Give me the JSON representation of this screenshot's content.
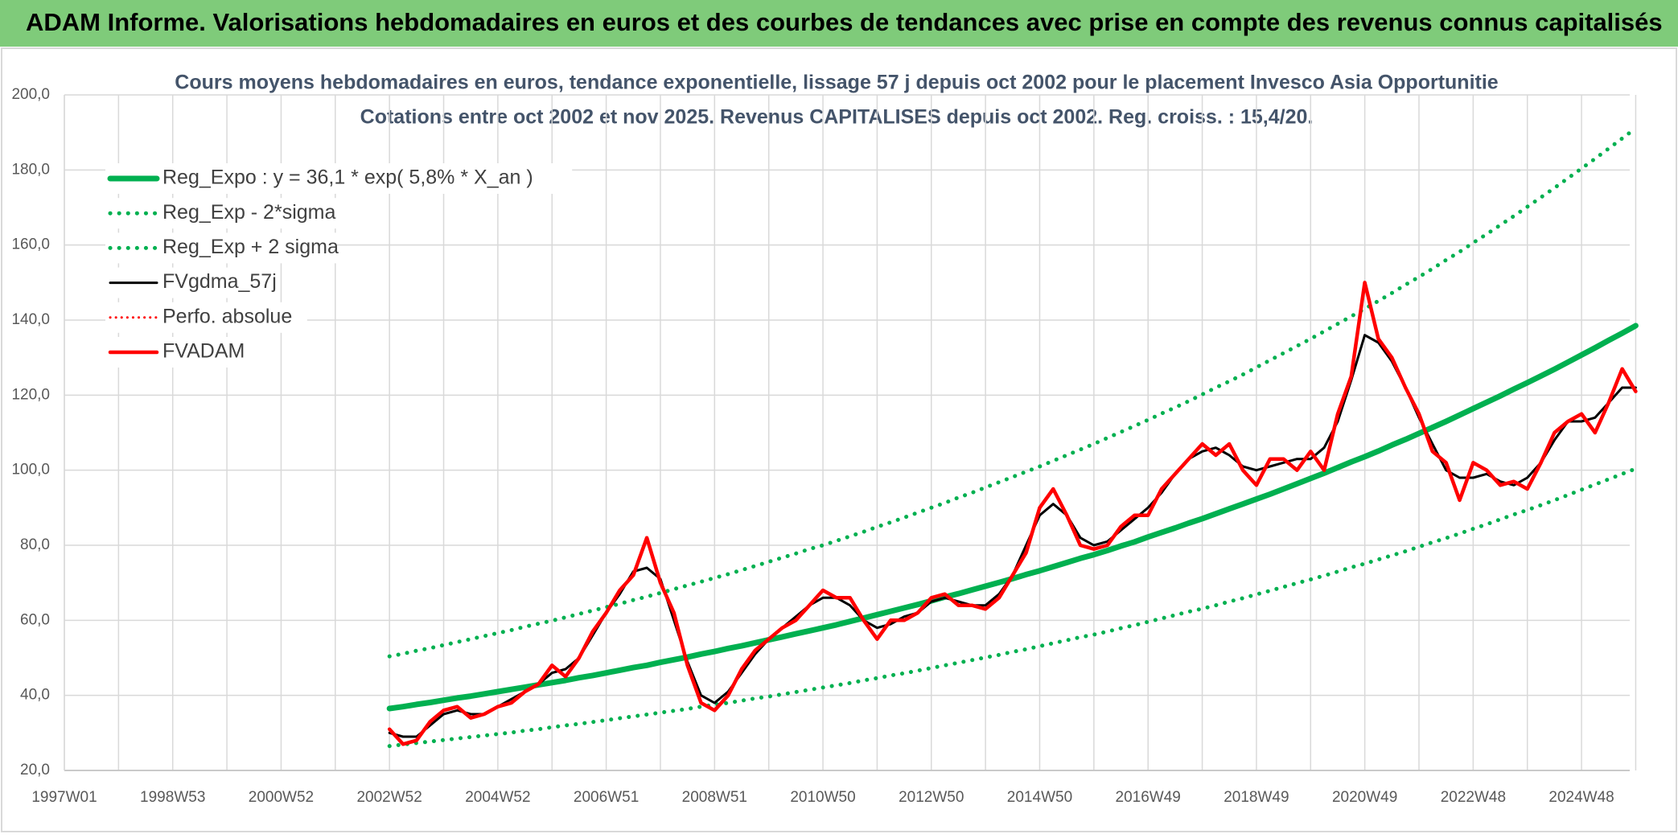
{
  "chart_data": {
    "type": "line",
    "banner": "ADAM Informe. Valorisations hebdomadaires en euros et des courbes de tendances avec prise en compte des revenus connus capitalisés",
    "title": "Cours moyens hebdomadaires en euros, tendance exponentielle, lissage 57 j depuis oct 2002 pour le placement Invesco Asia Opportunitie",
    "subtitle": "Cotations entre oct 2002 et nov 2025. Revenus CAPITALISES depuis oct 2002. Reg. croiss. : 15,4/20.",
    "categories": [
      "1997W01",
      null,
      null,
      null,
      null,
      null,
      null,
      null,
      "1998W53",
      null,
      null,
      null,
      null,
      null,
      null,
      null,
      "2000W52",
      null,
      null,
      null,
      null,
      null,
      null,
      null,
      "2002W52",
      null,
      null,
      null,
      null,
      null,
      null,
      null,
      "2004W52",
      null,
      null,
      null,
      null,
      null,
      null,
      null,
      "2006W51",
      null,
      null,
      null,
      null,
      null,
      null,
      null,
      "2008W51",
      null,
      null,
      null,
      null,
      null,
      null,
      null,
      "2010W50",
      null,
      null,
      null,
      null,
      null,
      null,
      null,
      "2012W50",
      null,
      null,
      null,
      null,
      null,
      null,
      null,
      "2014W50",
      null,
      null,
      null,
      null,
      null,
      null,
      null,
      "2016W49",
      null,
      null,
      null,
      null,
      null,
      null,
      null,
      "2018W49",
      null,
      null,
      null,
      null,
      null,
      null,
      null,
      "2020W49",
      null,
      null,
      null,
      null,
      null,
      null,
      null,
      "2022W48",
      null,
      null,
      null,
      null,
      null,
      null,
      null,
      "2024W48",
      null,
      null,
      null,
      null
    ],
    "ylim": [
      20,
      200
    ],
    "yticks": [
      {
        "value": 20,
        "label": "20,0"
      },
      {
        "value": 40,
        "label": "40,0"
      },
      {
        "value": 60,
        "label": "60,0"
      },
      {
        "value": 80,
        "label": "80,0"
      },
      {
        "value": 100,
        "label": "100,0"
      },
      {
        "value": 120,
        "label": "120,0"
      },
      {
        "value": 140,
        "label": "140,0"
      },
      {
        "value": 160,
        "label": "160,0"
      },
      {
        "value": 180,
        "label": "180,0"
      },
      {
        "value": 200,
        "label": "200,0"
      }
    ],
    "grid": true,
    "legend": "upper left",
    "series": [
      {
        "name": "Reg_Expo : y = 36,1 * exp( 5,8% *  X_an )",
        "color": "#00b050",
        "line_style": "solid",
        "values": [
          null,
          null,
          null,
          null,
          null,
          null,
          null,
          null,
          null,
          null,
          null,
          null,
          null,
          null,
          null,
          null,
          null,
          null,
          null,
          null,
          null,
          null,
          null,
          null,
          36.5,
          37.0,
          37.6,
          38.1,
          38.7,
          39.3,
          39.8,
          40.4,
          41.0,
          41.6,
          42.2,
          42.8,
          43.4,
          44.0,
          44.7,
          45.3,
          46.0,
          46.7,
          47.4,
          48.0,
          48.8,
          49.5,
          50.2,
          51.0,
          51.7,
          52.5,
          53.2,
          54.0,
          54.8,
          55.6,
          56.4,
          57.2,
          58.0,
          58.8,
          59.7,
          60.6,
          61.5,
          62.4,
          63.3,
          64.2,
          65.2,
          66.2,
          67.1,
          68.1,
          69.1,
          70.1,
          71.1,
          72.2,
          73.2,
          74.3,
          75.4,
          76.5,
          77.5,
          78.6,
          79.8,
          80.9,
          82.2,
          83.4,
          84.6,
          85.9,
          87.1,
          88.4,
          89.7,
          91.0,
          92.3,
          93.6,
          95.0,
          96.4,
          97.8,
          99.2,
          100.7,
          102.2,
          103.6,
          105.1,
          106.7,
          108.2,
          109.8,
          111.4,
          113.0,
          114.7,
          116.4,
          118.1,
          119.8,
          121.6,
          123.3,
          125.1,
          126.9,
          128.8,
          130.7,
          132.6,
          134.6,
          136.5,
          138.5
        ]
      },
      {
        "name": "Reg_Exp - 2*sigma",
        "color": "#00b050",
        "line_style": "dotted",
        "values": [
          null,
          null,
          null,
          null,
          null,
          null,
          null,
          null,
          null,
          null,
          null,
          null,
          null,
          null,
          null,
          null,
          null,
          null,
          null,
          null,
          null,
          null,
          null,
          null,
          26.5,
          26.9,
          27.3,
          27.7,
          28.1,
          28.5,
          28.9,
          29.3,
          29.7,
          30.1,
          30.6,
          31.0,
          31.5,
          32.0,
          32.4,
          32.9,
          33.4,
          33.9,
          34.4,
          34.9,
          35.4,
          35.9,
          36.4,
          37.0,
          37.5,
          38.0,
          38.6,
          39.2,
          39.7,
          40.3,
          40.9,
          41.5,
          42.1,
          42.7,
          43.3,
          44.0,
          44.6,
          45.3,
          45.9,
          46.6,
          47.3,
          48.0,
          48.7,
          49.4,
          50.1,
          50.8,
          51.6,
          52.3,
          53.1,
          53.9,
          54.7,
          55.5,
          56.2,
          57.0,
          57.9,
          58.7,
          59.6,
          60.5,
          61.4,
          62.3,
          63.1,
          64.0,
          65.0,
          65.9,
          66.9,
          67.9,
          68.9,
          69.9,
          70.9,
          71.9,
          73.0,
          74.1,
          75.1,
          76.2,
          77.3,
          78.4,
          79.6,
          80.8,
          81.9,
          83.1,
          84.4,
          85.6,
          86.9,
          88.2,
          89.4,
          90.7,
          92.0,
          93.4,
          94.8,
          96.2,
          97.6,
          99.0,
          100.4
        ]
      },
      {
        "name": "Reg_Exp + 2 sigma",
        "color": "#00b050",
        "line_style": "dotted",
        "values": [
          null,
          null,
          null,
          null,
          null,
          null,
          null,
          null,
          null,
          null,
          null,
          null,
          null,
          null,
          null,
          null,
          null,
          null,
          null,
          null,
          null,
          null,
          null,
          null,
          50.4,
          51.1,
          51.9,
          52.6,
          53.4,
          54.2,
          55.0,
          55.8,
          56.6,
          57.4,
          58.3,
          59.1,
          59.9,
          60.8,
          61.7,
          62.6,
          63.5,
          64.4,
          65.4,
          66.3,
          67.3,
          68.3,
          69.3,
          70.3,
          71.3,
          72.3,
          73.4,
          74.5,
          75.6,
          76.7,
          77.8,
          79.0,
          80.0,
          81.2,
          82.4,
          83.6,
          84.9,
          86.1,
          87.4,
          88.7,
          90.0,
          91.3,
          92.7,
          94.0,
          95.4,
          96.8,
          98.2,
          99.6,
          101.0,
          102.5,
          104.0,
          105.5,
          107.0,
          108.6,
          110.2,
          111.8,
          113.4,
          115.1,
          116.7,
          118.4,
          120.2,
          122.0,
          123.7,
          125.5,
          127.4,
          129.3,
          131.2,
          133.1,
          135.0,
          137.0,
          139.0,
          141.0,
          143.0,
          145.1,
          147.2,
          149.4,
          151.5,
          153.7,
          156.0,
          158.2,
          160.6,
          162.9,
          165.3,
          167.7,
          170.2,
          172.7,
          175.2,
          177.8,
          180.4,
          183.0,
          185.7,
          188.4,
          191.1
        ]
      },
      {
        "name": "FVgdma_57j",
        "color": "#000000",
        "line_style": "solid",
        "values": [
          null,
          null,
          null,
          null,
          null,
          null,
          null,
          null,
          null,
          null,
          null,
          null,
          null,
          null,
          null,
          null,
          null,
          null,
          null,
          null,
          null,
          null,
          null,
          null,
          30,
          29,
          29,
          32,
          35,
          36,
          35,
          35,
          37,
          39,
          41,
          43,
          46,
          47,
          50,
          56,
          62,
          67,
          73,
          74,
          71,
          60,
          49,
          40,
          38,
          41,
          46,
          51,
          55,
          58,
          61,
          64,
          66,
          66,
          64,
          60,
          58,
          59,
          61,
          62,
          65,
          66,
          65,
          64,
          64,
          67,
          72,
          80,
          88,
          91,
          88,
          82,
          80,
          81,
          84,
          87,
          90,
          94,
          99,
          103,
          105,
          106,
          104,
          101,
          100,
          101,
          102,
          103,
          103,
          106,
          113,
          124,
          136,
          134,
          129,
          122,
          114,
          107,
          100,
          98,
          98,
          99,
          97,
          96,
          98,
          102,
          108,
          113,
          113,
          114,
          118,
          122,
          122
        ]
      },
      {
        "name": "Perfo. absolue",
        "color": "#ff0000",
        "line_style": "dotted",
        "values": [
          null,
          null,
          null,
          null,
          null,
          null,
          null,
          null,
          null,
          null,
          null,
          null,
          null,
          null,
          null,
          null,
          null,
          null,
          null,
          null,
          null,
          null,
          null,
          null,
          31,
          27,
          28,
          33,
          36,
          37,
          34,
          35,
          37,
          38,
          41,
          43,
          48,
          45,
          50,
          57,
          62,
          68,
          72,
          82,
          70,
          62,
          48,
          38,
          36,
          40,
          47,
          52,
          55,
          58,
          60,
          64,
          68,
          66,
          66,
          60,
          55,
          60,
          60,
          62,
          66,
          67,
          64,
          64,
          63,
          66,
          72,
          78,
          90,
          95,
          88,
          80,
          79,
          80,
          85,
          88,
          88,
          95,
          99,
          103,
          107,
          104,
          107,
          100,
          96,
          103,
          103,
          100,
          105,
          100,
          115,
          125,
          150,
          135,
          130,
          122,
          115,
          105,
          102,
          92,
          102,
          100,
          96,
          97,
          95,
          102,
          110,
          113,
          115,
          110,
          118,
          127,
          121
        ]
      },
      {
        "name": "FVADAM",
        "color": "#ff0000",
        "line_style": "solid",
        "values": [
          null,
          null,
          null,
          null,
          null,
          null,
          null,
          null,
          null,
          null,
          null,
          null,
          null,
          null,
          null,
          null,
          null,
          null,
          null,
          null,
          null,
          null,
          null,
          null,
          31,
          27,
          28,
          33,
          36,
          37,
          34,
          35,
          37,
          38,
          41,
          43,
          48,
          45,
          50,
          57,
          62,
          68,
          72,
          82,
          70,
          62,
          48,
          38,
          36,
          40,
          47,
          52,
          55,
          58,
          60,
          64,
          68,
          66,
          66,
          60,
          55,
          60,
          60,
          62,
          66,
          67,
          64,
          64,
          63,
          66,
          72,
          78,
          90,
          95,
          88,
          80,
          79,
          80,
          85,
          88,
          88,
          95,
          99,
          103,
          107,
          104,
          107,
          100,
          96,
          103,
          103,
          100,
          105,
          100,
          115,
          125,
          150,
          135,
          130,
          122,
          115,
          105,
          102,
          92,
          102,
          100,
          96,
          97,
          95,
          102,
          110,
          113,
          115,
          110,
          118,
          127,
          121
        ]
      }
    ]
  }
}
